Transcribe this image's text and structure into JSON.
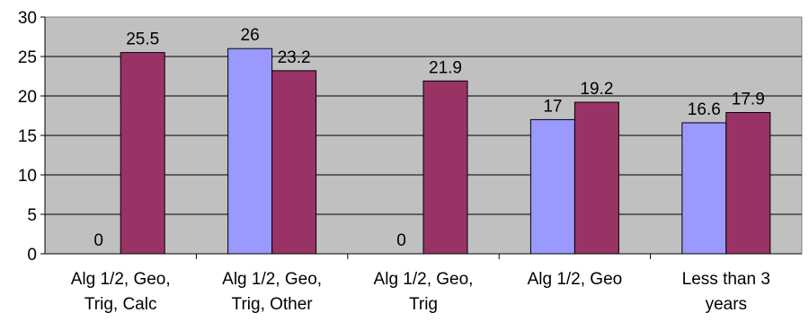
{
  "chart_data": {
    "type": "bar",
    "categories": [
      [
        "Alg 1/2, Geo,",
        "Trig, Calc"
      ],
      [
        "Alg 1/2, Geo,",
        "Trig, Other"
      ],
      [
        "Alg 1/2, Geo,",
        "Trig"
      ],
      [
        "Alg 1/2, Geo"
      ],
      [
        "Less than 3",
        "years"
      ]
    ],
    "series": [
      {
        "values": [
          0,
          26,
          0,
          17,
          16.6
        ],
        "labels": [
          "0",
          "26",
          "0",
          "17",
          "16.6"
        ],
        "color": "#9999ff"
      },
      {
        "values": [
          25.5,
          23.2,
          21.9,
          19.2,
          17.9
        ],
        "labels": [
          "25.5",
          "23.2",
          "21.9",
          "19.2",
          "17.9"
        ],
        "color": "#993366"
      }
    ],
    "ylim": [
      0,
      30
    ],
    "yticks": [
      "0",
      "5",
      "10",
      "15",
      "20",
      "25",
      "30"
    ],
    "grid": true,
    "plot_background": "#c0c0c0",
    "title": "",
    "xlabel": "",
    "ylabel": ""
  }
}
